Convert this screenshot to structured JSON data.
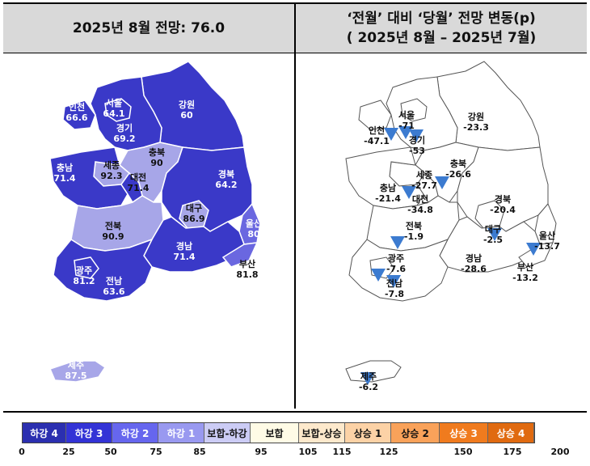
{
  "left_title": "2025년 8월 전망: 76.0",
  "right_title_line1": "‘전월’ 대비 ‘당월’ 전망 변동(p)",
  "right_title_line2": "( 2025년 8월 –  2025년 7월)",
  "regions_left": [
    {
      "name": "인천",
      "value": "66.6"
    },
    {
      "name": "서울",
      "value": "64.1"
    },
    {
      "name": "경기",
      "value": "69.2"
    },
    {
      "name": "강원",
      "value": "60"
    },
    {
      "name": "충북",
      "value": "90"
    },
    {
      "name": "충남",
      "value": "71.4"
    },
    {
      "name": "세종",
      "value": "92.3"
    },
    {
      "name": "대전",
      "value": "71.4"
    },
    {
      "name": "경북",
      "value": "64.2"
    },
    {
      "name": "대구",
      "value": "86.9"
    },
    {
      "name": "전북",
      "value": "90.9"
    },
    {
      "name": "울산",
      "value": "80"
    },
    {
      "name": "경남",
      "value": "71.4"
    },
    {
      "name": "부산",
      "value": "81.8"
    },
    {
      "name": "광주",
      "value": "81.2"
    },
    {
      "name": "전남",
      "value": "63.6"
    },
    {
      "name": "제주",
      "value": "87.5"
    }
  ],
  "regions_right": [
    {
      "name": "서울",
      "value": "-71"
    },
    {
      "name": "강원",
      "value": "-23.3"
    },
    {
      "name": "인천",
      "value": "-47.1"
    },
    {
      "name": "경기",
      "value": "-53"
    },
    {
      "name": "충북",
      "value": "-26.6"
    },
    {
      "name": "세종",
      "value": "-27.7"
    },
    {
      "name": "충남",
      "value": "-21.4"
    },
    {
      "name": "대전",
      "value": "-34.8"
    },
    {
      "name": "경북",
      "value": "-20.4"
    },
    {
      "name": "전북",
      "value": "-1.9"
    },
    {
      "name": "대구",
      "value": "-2.5"
    },
    {
      "name": "울산",
      "value": "-13.7"
    },
    {
      "name": "광주",
      "value": "-7.6"
    },
    {
      "name": "경남",
      "value": "-28.6"
    },
    {
      "name": "부산",
      "value": "-13.2"
    },
    {
      "name": "전남",
      "value": "-7.8"
    },
    {
      "name": "제주",
      "value": "-6.2"
    }
  ],
  "legend": [
    {
      "label": "하강 4",
      "color": "#2b2fb0"
    },
    {
      "label": "하강 3",
      "color": "#3333d6"
    },
    {
      "label": "하강 2",
      "color": "#6666ee"
    },
    {
      "label": "하강 1",
      "color": "#9999f0"
    },
    {
      "label": "보합-하강",
      "color": "#ccccf5"
    },
    {
      "label": "보합",
      "color": "#fffbe6"
    },
    {
      "label": "보합-상승",
      "color": "#fde9cc"
    },
    {
      "label": "상승 1",
      "color": "#fcd2a6"
    },
    {
      "label": "상승 2",
      "color": "#f9a25a"
    },
    {
      "label": "상승 3",
      "color": "#f07b1e"
    },
    {
      "label": "상승 4",
      "color": "#e06a10"
    }
  ],
  "ticks": [
    "0",
    "25",
    "50",
    "75",
    "85",
    "95",
    "105",
    "115",
    "125",
    "150",
    "175",
    "200"
  ],
  "colors": {
    "dark": "#3a39c8",
    "mid": "#6a67e0",
    "light": "#a7a6e8",
    "arrow": "#3c7bd0"
  }
}
